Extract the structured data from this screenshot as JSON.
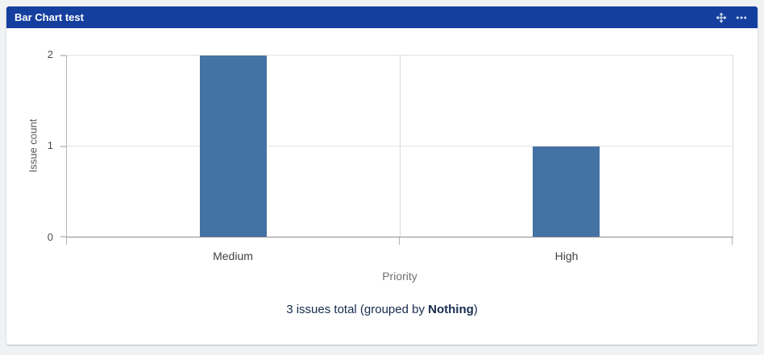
{
  "window": {
    "background": "#F1F2F4"
  },
  "panel": {
    "title": "Bar Chart test",
    "header_bg": "#143F9E",
    "header_icons": [
      {
        "name": "move-icon"
      },
      {
        "name": "more-icon"
      }
    ]
  },
  "chart_data": {
    "type": "bar",
    "categories": [
      "Medium",
      "High"
    ],
    "values": [
      2,
      1
    ],
    "title": "Bar Chart test",
    "xlabel": "Priority",
    "ylabel": "Issue count",
    "ylim": [
      0,
      2
    ],
    "yticks": [
      0,
      1,
      2
    ],
    "bar_color": "#4472A4",
    "bar_width_fraction": 0.1,
    "grid": true,
    "legend": false,
    "axis_color": "#8c8c8c",
    "gridline_color": "#e3e3e3"
  },
  "footer": {
    "summary_prefix": "3 issues total (grouped by ",
    "summary_bold": "Nothing",
    "summary_suffix": ")"
  }
}
